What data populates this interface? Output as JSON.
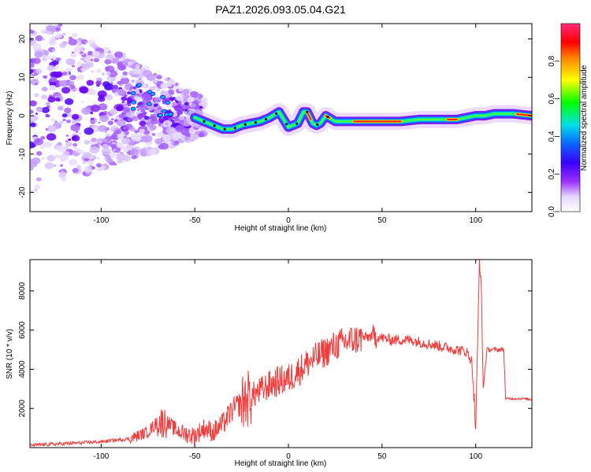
{
  "chart_data": [
    {
      "type": "heatmap",
      "title": "PAZ1.2026.093.05.04.G21",
      "xlabel": "Height of straight line (km)",
      "ylabel": "Frequency (Hz)",
      "xlim": [
        -138,
        130
      ],
      "ylim": [
        -25,
        24
      ],
      "xticks": [
        -100,
        -50,
        0,
        50,
        100
      ],
      "yticks": [
        -20,
        -10,
        0,
        10,
        20
      ],
      "colorbar": {
        "label": "Normalized spectral amplitude",
        "range": [
          0,
          1
        ],
        "ticks": [
          "0.0",
          "0.2",
          "0.4",
          "0.6",
          "0.8"
        ],
        "colormap": "rainbow (white-violet-blue-cyan-green-yellow-red-magenta)"
      },
      "ridge": {
        "x": [
          -50,
          -45,
          -40,
          -35,
          -30,
          -25,
          -20,
          -15,
          -10,
          -5,
          0,
          5,
          8,
          10,
          13,
          15,
          17,
          20,
          25,
          30,
          40,
          50,
          60,
          70,
          80,
          90,
          95,
          100,
          105,
          110,
          120,
          130
        ],
        "y": [
          -0.5,
          -1.5,
          -2.5,
          -3.5,
          -3.5,
          -2.5,
          -2,
          -1.5,
          -0.5,
          1,
          -3,
          -2,
          1,
          1,
          -2,
          -2.5,
          -2,
          0,
          -1.5,
          -1.5,
          -1.5,
          -1.5,
          -1.5,
          -1,
          -1,
          -1,
          -0.5,
          0,
          0,
          0.5,
          0.5,
          0
        ],
        "peak_amplitude_regions_x": [
          [
            10,
            12
          ],
          [
            20,
            22
          ],
          [
            35,
            60
          ],
          [
            85,
            90
          ],
          [
            122,
            130
          ]
        ]
      },
      "noise_region_x": [
        -138,
        -50
      ],
      "noise_region_ylim": [
        -25,
        24
      ]
    },
    {
      "type": "line",
      "xlabel": "Height of straight line (km)",
      "ylabel": "SNR (10 * v/v)",
      "xlim": [
        -138,
        130
      ],
      "ylim": [
        0,
        9600
      ],
      "xticks": [
        -100,
        -50,
        0,
        50,
        100
      ],
      "yticks": [
        2000,
        4000,
        6000,
        8000
      ],
      "color": "#f03c3c",
      "series": [
        {
          "name": "SNR",
          "x": [
            -138,
            -120,
            -100,
            -85,
            -75,
            -70,
            -65,
            -60,
            -55,
            -50,
            -45,
            -40,
            -35,
            -30,
            -25,
            -20,
            -15,
            -10,
            -5,
            0,
            5,
            10,
            15,
            20,
            25,
            30,
            35,
            40,
            45,
            50,
            55,
            60,
            65,
            70,
            75,
            80,
            85,
            90,
            95,
            98,
            100,
            102,
            103,
            104,
            106,
            110,
            115,
            116,
            120,
            125,
            130
          ],
          "y": [
            120,
            200,
            300,
            450,
            800,
            1300,
            1300,
            900,
            700,
            600,
            1000,
            800,
            1200,
            1900,
            2300,
            2600,
            2900,
            3200,
            3400,
            3500,
            3900,
            4300,
            4600,
            4900,
            5200,
            5400,
            5500,
            5600,
            5700,
            5600,
            5500,
            5500,
            5500,
            5400,
            5300,
            5200,
            5100,
            5000,
            4900,
            4400,
            1000,
            9600,
            8200,
            3000,
            5000,
            5000,
            5000,
            2500,
            2500,
            2500,
            2450
          ]
        }
      ],
      "spike_regions_x": [
        [
          -70,
          -65
        ],
        [
          -25,
          -20
        ],
        [
          45,
          47
        ],
        [
          99,
          104
        ]
      ]
    }
  ]
}
